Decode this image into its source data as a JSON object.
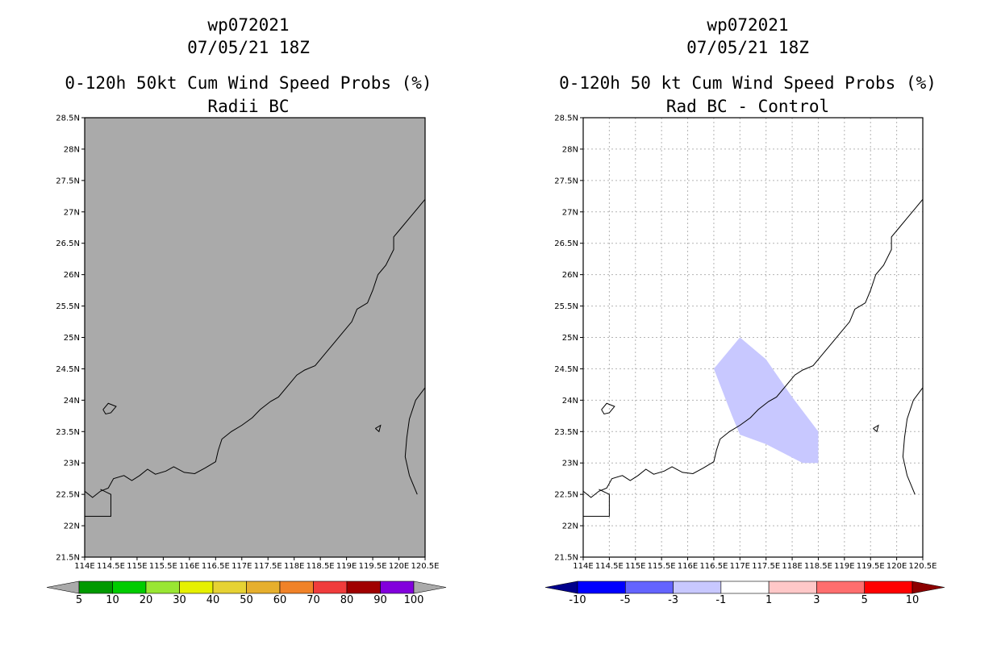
{
  "chart_data": [
    {
      "type": "map",
      "title_lines": [
        "wp072021",
        "07/05/21 18Z",
        "0-120h 50kt Cum Wind Speed Probs (%)",
        "Radii BC"
      ],
      "lon_range": [
        114,
        120.5
      ],
      "lat_range": [
        21.5,
        28.5
      ],
      "x_ticks": [
        "114E",
        "114.5E",
        "115E",
        "115.5E",
        "116E",
        "116.5E",
        "117E",
        "117.5E",
        "118E",
        "118.5E",
        "119E",
        "119.5E",
        "120E",
        "120.5E"
      ],
      "y_ticks": [
        "21.5N",
        "22N",
        "22.5N",
        "23N",
        "23.5N",
        "24N",
        "24.5N",
        "25N",
        "25.5N",
        "26N",
        "26.5N",
        "27N",
        "27.5N",
        "28N",
        "28.5N"
      ],
      "grid": false,
      "background_color": "#aaaaaa",
      "colorbar": {
        "labels": [
          "5",
          "10",
          "20",
          "30",
          "40",
          "50",
          "60",
          "70",
          "80",
          "90",
          "100"
        ],
        "colors": [
          "#009900",
          "#00cc00",
          "#99e633",
          "#e6f000",
          "#e6d233",
          "#e6af2d",
          "#f08228",
          "#f03c3c",
          "#a00000",
          "#8200dc"
        ],
        "under_color": "#aaaaaa",
        "over_color": "#aaaaaa"
      }
    },
    {
      "type": "map",
      "title_lines": [
        "wp072021",
        "07/05/21 18Z",
        "0-120h 50 kt Cum Wind Speed Probs (%)",
        "Rad BC - Control"
      ],
      "lon_range": [
        114,
        120.5
      ],
      "lat_range": [
        21.5,
        28.5
      ],
      "x_ticks": [
        "114E",
        "114.5E",
        "115E",
        "115.5E",
        "116E",
        "116.5E",
        "117E",
        "117.5E",
        "118E",
        "118.5E",
        "119E",
        "119.5E",
        "120E",
        "120.5E"
      ],
      "y_ticks": [
        "21.5N",
        "22N",
        "22.5N",
        "23N",
        "23.5N",
        "24N",
        "24.5N",
        "25N",
        "25.5N",
        "26N",
        "26.5N",
        "27N",
        "27.5N",
        "28N",
        "28.5N"
      ],
      "grid": true,
      "background_color": "#ffffff",
      "shaded_region": {
        "label": "-3 to -1",
        "color": "#c8c8ff",
        "vertices_lonlat": [
          [
            116.5,
            24.5
          ],
          [
            117,
            25.0
          ],
          [
            117.5,
            24.65
          ],
          [
            118,
            24.05
          ],
          [
            118.5,
            23.5
          ],
          [
            118.5,
            23.0
          ],
          [
            118.2,
            23.0
          ],
          [
            117.5,
            23.3
          ],
          [
            117,
            23.45
          ],
          [
            116.85,
            23.75
          ]
        ]
      },
      "colorbar": {
        "labels": [
          "-10",
          "-5",
          "-3",
          "-1",
          "1",
          "3",
          "5",
          "10"
        ],
        "colors": [
          "#0000ff",
          "#6464ff",
          "#c8c8ff",
          "#ffffff",
          "#ffc8c8",
          "#ff6e6e",
          "#ff0000"
        ],
        "under_color": "#00008c",
        "over_color": "#8c0000"
      }
    }
  ]
}
